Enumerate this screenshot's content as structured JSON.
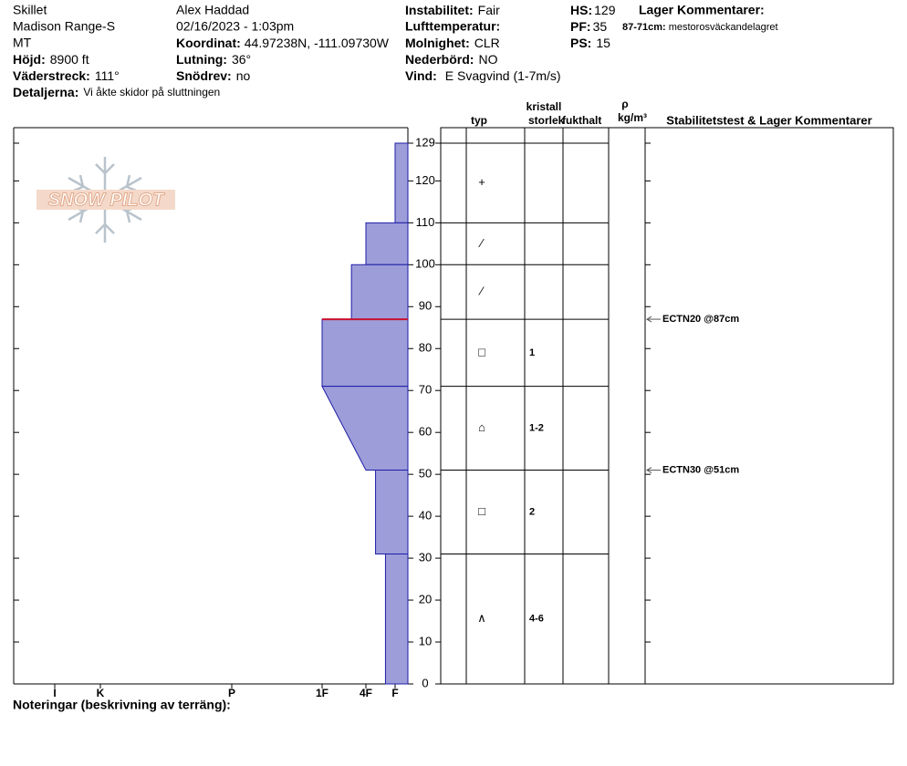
{
  "header": {
    "site": "Skillet",
    "range": "Madison Range-S",
    "state": "MT",
    "elevation": {
      "label": "Höjd:",
      "value": "8900 ft"
    },
    "aspect": {
      "label": "Väderstreck:",
      "value": "111°"
    },
    "details": {
      "label": "Detaljerna:",
      "value": "Vi åkte skidor på sluttningen"
    },
    "observer": "Alex Haddad",
    "datetime": "02/16/2023 - 1:03pm",
    "coordinates": {
      "label": "Koordinat:",
      "value": "44.97238N, -111.09730W"
    },
    "slope": {
      "label": "Lutning:",
      "value": "36°"
    },
    "wind_loading": {
      "label": "Snödrev:",
      "value": "no"
    },
    "instability": {
      "label": "Instabilitet:",
      "value": "Fair"
    },
    "air_temp": {
      "label": "Lufttemperatur:"
    },
    "sky": {
      "label": "Molnighet:",
      "value": "CLR"
    },
    "precip": {
      "label": "Nederbörd:",
      "value": "NO"
    },
    "wind": {
      "label": "Vind:",
      "value": "E Svagvind (1-7m/s)"
    },
    "hs": {
      "label": "HS:",
      "value": 129
    },
    "pf": {
      "label": "PF:",
      "value": 35
    },
    "ps": {
      "label": "PS:",
      "value": 15
    },
    "layer_comments": {
      "title": "Lager Kommentarer:",
      "items": [
        {
          "label": "87-71cm:",
          "value": "mestorosväckandelagret"
        }
      ]
    }
  },
  "logo": "SNOW PILOT",
  "footer": "Noteringar (beskrivning av terräng):",
  "chart_data": {
    "type": "snowprofile",
    "ylim": [
      0,
      129
    ],
    "yticks": [
      0,
      10,
      20,
      30,
      40,
      50,
      60,
      70,
      80,
      90,
      100,
      110,
      120,
      129
    ],
    "xlim": [
      0,
      7
    ],
    "xticks": [
      {
        "value": 6,
        "label": "I"
      },
      {
        "value": 5,
        "label": "K"
      },
      {
        "value": 4,
        "label": "P"
      },
      {
        "value": 3,
        "label": "1F"
      },
      {
        "value": 2,
        "label": "4F"
      },
      {
        "value": 1,
        "label": "F"
      }
    ],
    "color": "#9d9dd9",
    "edge_color": "#1e1ea8",
    "concern_color": "#c8102e",
    "layers": [
      {
        "top": 129,
        "bottom": 110,
        "hardness": 1,
        "grain": "+"
      },
      {
        "top": 110,
        "bottom": 100,
        "hardness": 2,
        "grain": "⁄"
      },
      {
        "top": 100,
        "bottom": 87,
        "hardness": 2.33,
        "grain": "⁄"
      },
      {
        "top": 87,
        "bottom": 71,
        "hardness": 3,
        "grain": "□",
        "size": "1",
        "concern": true
      },
      {
        "top": 71,
        "bottom": 51,
        "hardness": 3,
        "hardness_bottom": 2,
        "grain": "⌂",
        "size": "1-2"
      },
      {
        "top": 51,
        "bottom": 31,
        "hardness": 1.67,
        "grain": "□",
        "size": "2"
      },
      {
        "top": 31,
        "bottom": 0,
        "hardness": 1.33,
        "grain": "∧",
        "size": "4-6"
      }
    ],
    "tests": [
      {
        "label": "ECTN20 @87cm",
        "depth": 87
      },
      {
        "label": "ECTN30 @51cm",
        "depth": 51
      }
    ],
    "columns": {
      "type": "typ",
      "crystal": "kristall",
      "size": "storlek",
      "moisture": "fukthalt",
      "density_symbol": "ρ",
      "density_unit": "kg/m³",
      "comments": "Stabilitetstest & Lager Kommentarer"
    }
  }
}
